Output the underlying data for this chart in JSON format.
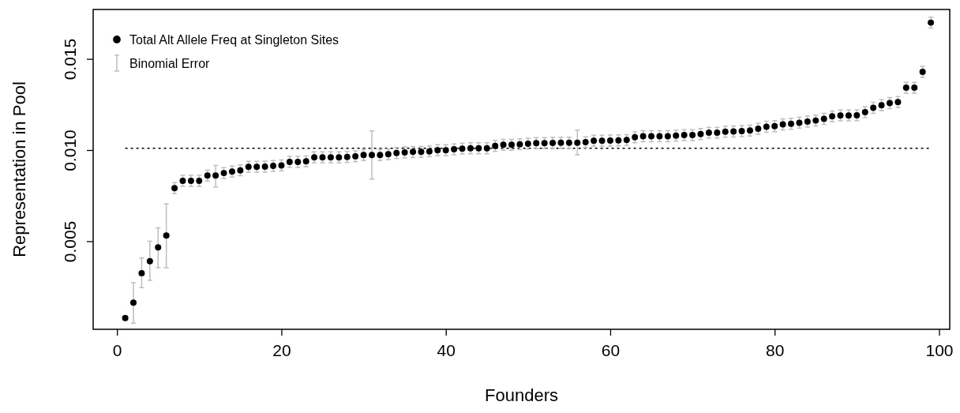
{
  "chart_data": {
    "type": "scatter",
    "xlabel": "Founders",
    "ylabel": "Representation in Pool",
    "x": [
      1,
      2,
      3,
      4,
      5,
      6,
      7,
      8,
      9,
      10,
      11,
      12,
      13,
      14,
      15,
      16,
      17,
      18,
      19,
      20,
      21,
      22,
      23,
      24,
      25,
      26,
      27,
      28,
      29,
      30,
      31,
      32,
      33,
      34,
      35,
      36,
      37,
      38,
      39,
      40,
      41,
      42,
      43,
      44,
      45,
      46,
      47,
      48,
      49,
      50,
      51,
      52,
      53,
      54,
      55,
      56,
      57,
      58,
      59,
      60,
      61,
      62,
      63,
      64,
      65,
      66,
      67,
      68,
      69,
      70,
      71,
      72,
      73,
      74,
      75,
      76,
      77,
      78,
      79,
      80,
      81,
      82,
      83,
      84,
      85,
      86,
      87,
      88,
      89,
      90,
      91,
      92,
      93,
      94,
      95,
      96,
      97,
      98,
      99
    ],
    "series": [
      {
        "name": "Total Alt Allele Freq at Singleton Sites",
        "color": "#000000",
        "values": [
          0.00079,
          0.00163,
          0.00325,
          0.00391,
          0.00466,
          0.00531,
          0.00791,
          0.00831,
          0.00831,
          0.00831,
          0.0086,
          0.0086,
          0.00874,
          0.00882,
          0.00889,
          0.00908,
          0.00908,
          0.00909,
          0.00913,
          0.00916,
          0.00935,
          0.00935,
          0.00938,
          0.0096,
          0.0096,
          0.0096,
          0.0096,
          0.00962,
          0.00966,
          0.00973,
          0.00973,
          0.00973,
          0.00977,
          0.00984,
          0.00987,
          0.0099,
          0.0099,
          0.00993,
          0.00999,
          0.00999,
          0.01004,
          0.01008,
          0.0101,
          0.0101,
          0.0101,
          0.01023,
          0.01029,
          0.01029,
          0.01032,
          0.01035,
          0.01038,
          0.01038,
          0.01039,
          0.0104,
          0.0104,
          0.0104,
          0.01043,
          0.01051,
          0.01051,
          0.01052,
          0.01053,
          0.01055,
          0.0107,
          0.01076,
          0.01076,
          0.01076,
          0.01076,
          0.01079,
          0.01082,
          0.01082,
          0.01088,
          0.01095,
          0.01095,
          0.01101,
          0.01102,
          0.01104,
          0.01107,
          0.01117,
          0.01128,
          0.01131,
          0.01141,
          0.01144,
          0.0115,
          0.01156,
          0.01162,
          0.01171,
          0.01185,
          0.0119,
          0.0119,
          0.01191,
          0.01208,
          0.01232,
          0.01246,
          0.01258,
          0.01263,
          0.01342,
          0.01342,
          0.01429,
          0.01699
        ],
        "errors": [
          5e-05,
          [
            0.00051,
            0.00273
          ],
          [
            0.00245,
            0.00408
          ],
          [
            0.00286,
            0.005
          ],
          [
            0.00355,
            0.00574
          ],
          [
            0.00355,
            0.00704
          ],
          0.0003,
          0.0003,
          0.0003,
          0.0003,
          0.0003,
          [
            0.00798,
            0.00916
          ],
          0.0003,
          0.0003,
          0.0003,
          0.0003,
          0.0003,
          0.0003,
          0.0003,
          0.0003,
          0.0003,
          0.0003,
          0.0003,
          0.0003,
          0.0003,
          0.0003,
          0.0003,
          0.0003,
          0.0003,
          0.0003,
          [
            0.00841,
            0.01105
          ],
          0.0003,
          0.0003,
          0.0003,
          0.0003,
          0.0003,
          0.0003,
          0.0003,
          0.0003,
          0.0003,
          0.0003,
          0.0003,
          0.0003,
          0.0003,
          0.0003,
          0.0003,
          0.0003,
          0.0003,
          0.0003,
          0.0003,
          0.0003,
          0.0003,
          0.0003,
          0.0003,
          0.0003,
          [
            0.00974,
            0.0111
          ],
          0.0003,
          0.0003,
          0.0003,
          0.0003,
          0.0003,
          0.0003,
          0.0003,
          0.0003,
          0.0003,
          0.0003,
          0.0003,
          0.0003,
          0.0003,
          0.0003,
          0.0003,
          0.0003,
          0.0003,
          0.0003,
          0.0003,
          0.0003,
          0.0003,
          0.0003,
          0.0003,
          0.0003,
          0.0003,
          0.0003,
          0.0003,
          0.0003,
          0.0003,
          0.0003,
          0.0003,
          0.0003,
          0.0003,
          0.0003,
          0.0003,
          0.0003,
          0.0003,
          0.0003,
          0.0003,
          0.0003,
          0.0003,
          0.0003,
          0.0003
        ]
      }
    ],
    "xlim": [
      -2.9,
      101.3
    ],
    "xticks": [
      0,
      20,
      40,
      60,
      80,
      100
    ],
    "ylim": [
      0.00017,
      0.01771
    ],
    "yticks": [
      {
        "value": 0.005,
        "label": "0.005"
      },
      {
        "value": 0.01,
        "label": "0.010"
      },
      {
        "value": 0.015,
        "label": "0.015"
      }
    ],
    "ref_lines": [
      {
        "axis": "y",
        "value": 0.0101,
        "line_style": "dotted",
        "color": "#000000"
      }
    ],
    "annotations": [
      "Binomial Error"
    ],
    "legend": "top left",
    "marker": "circle",
    "grid": false
  }
}
